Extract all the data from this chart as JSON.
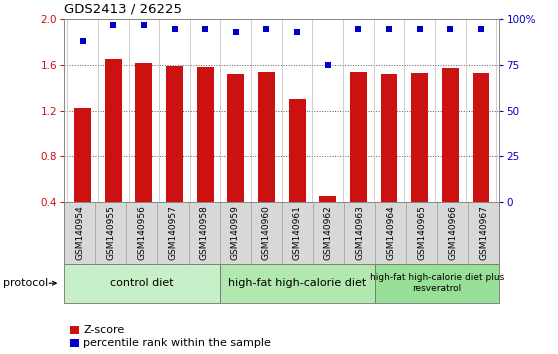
{
  "title": "GDS2413 / 26225",
  "samples": [
    "GSM140954",
    "GSM140955",
    "GSM140956",
    "GSM140957",
    "GSM140958",
    "GSM140959",
    "GSM140960",
    "GSM140961",
    "GSM140962",
    "GSM140963",
    "GSM140964",
    "GSM140965",
    "GSM140966",
    "GSM140967"
  ],
  "zscore": [
    1.22,
    1.65,
    1.62,
    1.59,
    1.58,
    1.52,
    1.54,
    1.3,
    0.45,
    1.54,
    1.52,
    1.53,
    1.57,
    1.53
  ],
  "percentile": [
    88,
    97,
    97,
    95,
    95,
    93,
    95,
    93,
    75,
    95,
    95,
    95,
    95,
    95
  ],
  "ylim_left": [
    0.4,
    2.0
  ],
  "ylim_right": [
    0,
    100
  ],
  "yticks_left": [
    0.4,
    0.8,
    1.2,
    1.6,
    2.0
  ],
  "yticks_right": [
    0,
    25,
    50,
    75,
    100
  ],
  "bar_color": "#cc1111",
  "dot_color": "#0000cc",
  "grid_color": "#888888",
  "sample_bg_color": "#d8d8d8",
  "protocol_groups": [
    {
      "label": "control diet",
      "start": 0,
      "end": 4,
      "color": "#c8f0c8"
    },
    {
      "label": "high-fat high-calorie diet",
      "start": 5,
      "end": 9,
      "color": "#b0e8b0"
    },
    {
      "label": "high-fat high-calorie diet plus\nresveratrol",
      "start": 10,
      "end": 13,
      "color": "#98e098"
    }
  ],
  "legend_zscore_label": "Z-score",
  "legend_pct_label": "percentile rank within the sample",
  "protocol_label": "protocol",
  "left_axis_color": "#cc1111",
  "right_axis_color": "#0000cc",
  "bar_bottom": 0.4
}
